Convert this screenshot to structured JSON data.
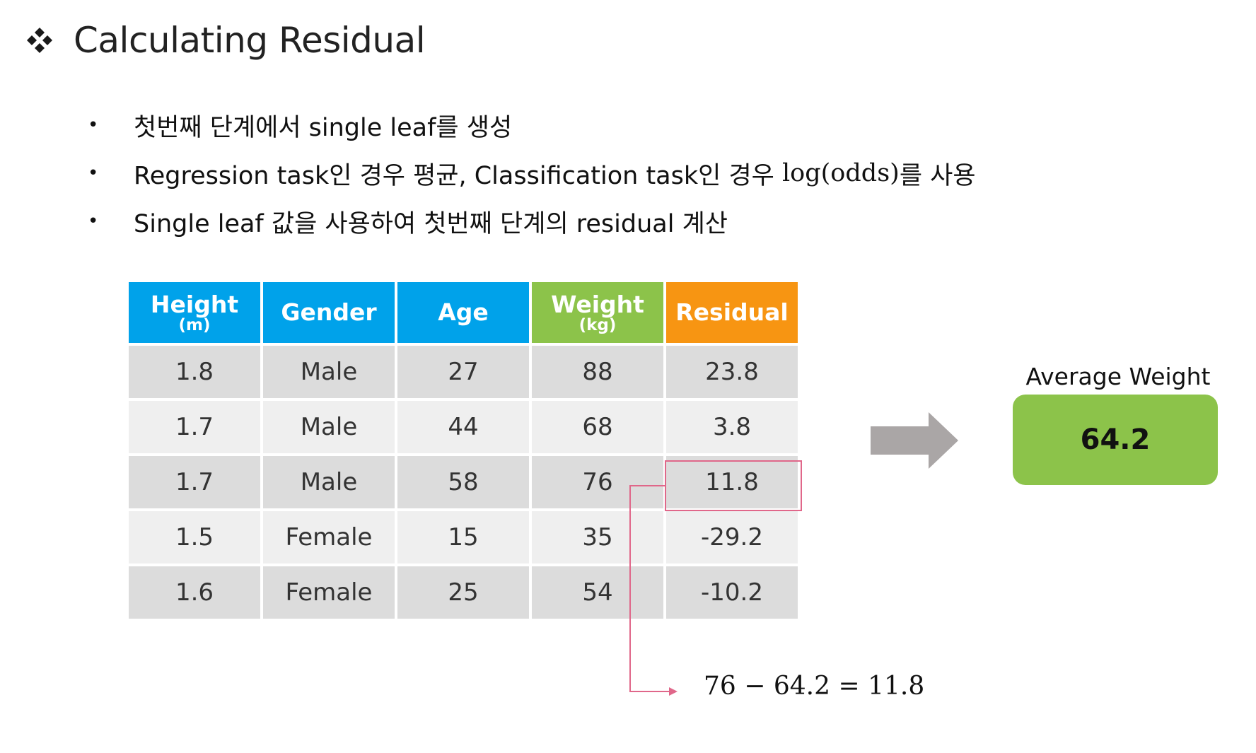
{
  "slide": {
    "title": "Calculating Residual",
    "title_icon": "four-diamond-bullet-icon"
  },
  "bullets": [
    {
      "text": "첫번째 단계에서 single leaf를 생성"
    },
    {
      "text_a": "Regression task인 경우 평균, Classification task인 경우 ",
      "text_math": "log(odds)",
      "text_b": "를 사용"
    },
    {
      "text": "Single leaf 값을 사용하여 첫번째 단계의 residual 계산"
    }
  ],
  "table": {
    "headers": [
      {
        "label": "Height",
        "unit": "(m)",
        "color": "#00a2ea"
      },
      {
        "label": "Gender",
        "unit": "",
        "color": "#00a2ea"
      },
      {
        "label": "Age",
        "unit": "",
        "color": "#00a2ea"
      },
      {
        "label": "Weight",
        "unit": "(kg)",
        "color": "#8cc34a"
      },
      {
        "label": "Residual",
        "unit": "",
        "color": "#f79512"
      }
    ],
    "rows": [
      [
        "1.8",
        "Male",
        "27",
        "88",
        "23.8"
      ],
      [
        "1.7",
        "Male",
        "44",
        "68",
        "3.8"
      ],
      [
        "1.7",
        "Male",
        "58",
        "76",
        "11.8"
      ],
      [
        "1.5",
        "Female",
        "15",
        "35",
        "-29.2"
      ],
      [
        "1.6",
        "Female",
        "25",
        "54",
        "-10.2"
      ]
    ],
    "highlight_color": "#e0678a"
  },
  "formula": "76 − 64.2 = 11.8",
  "average": {
    "label": "Average Weight",
    "value": "64.2",
    "color": "#8cc34a"
  },
  "arrow_color": "#aaa6a6"
}
